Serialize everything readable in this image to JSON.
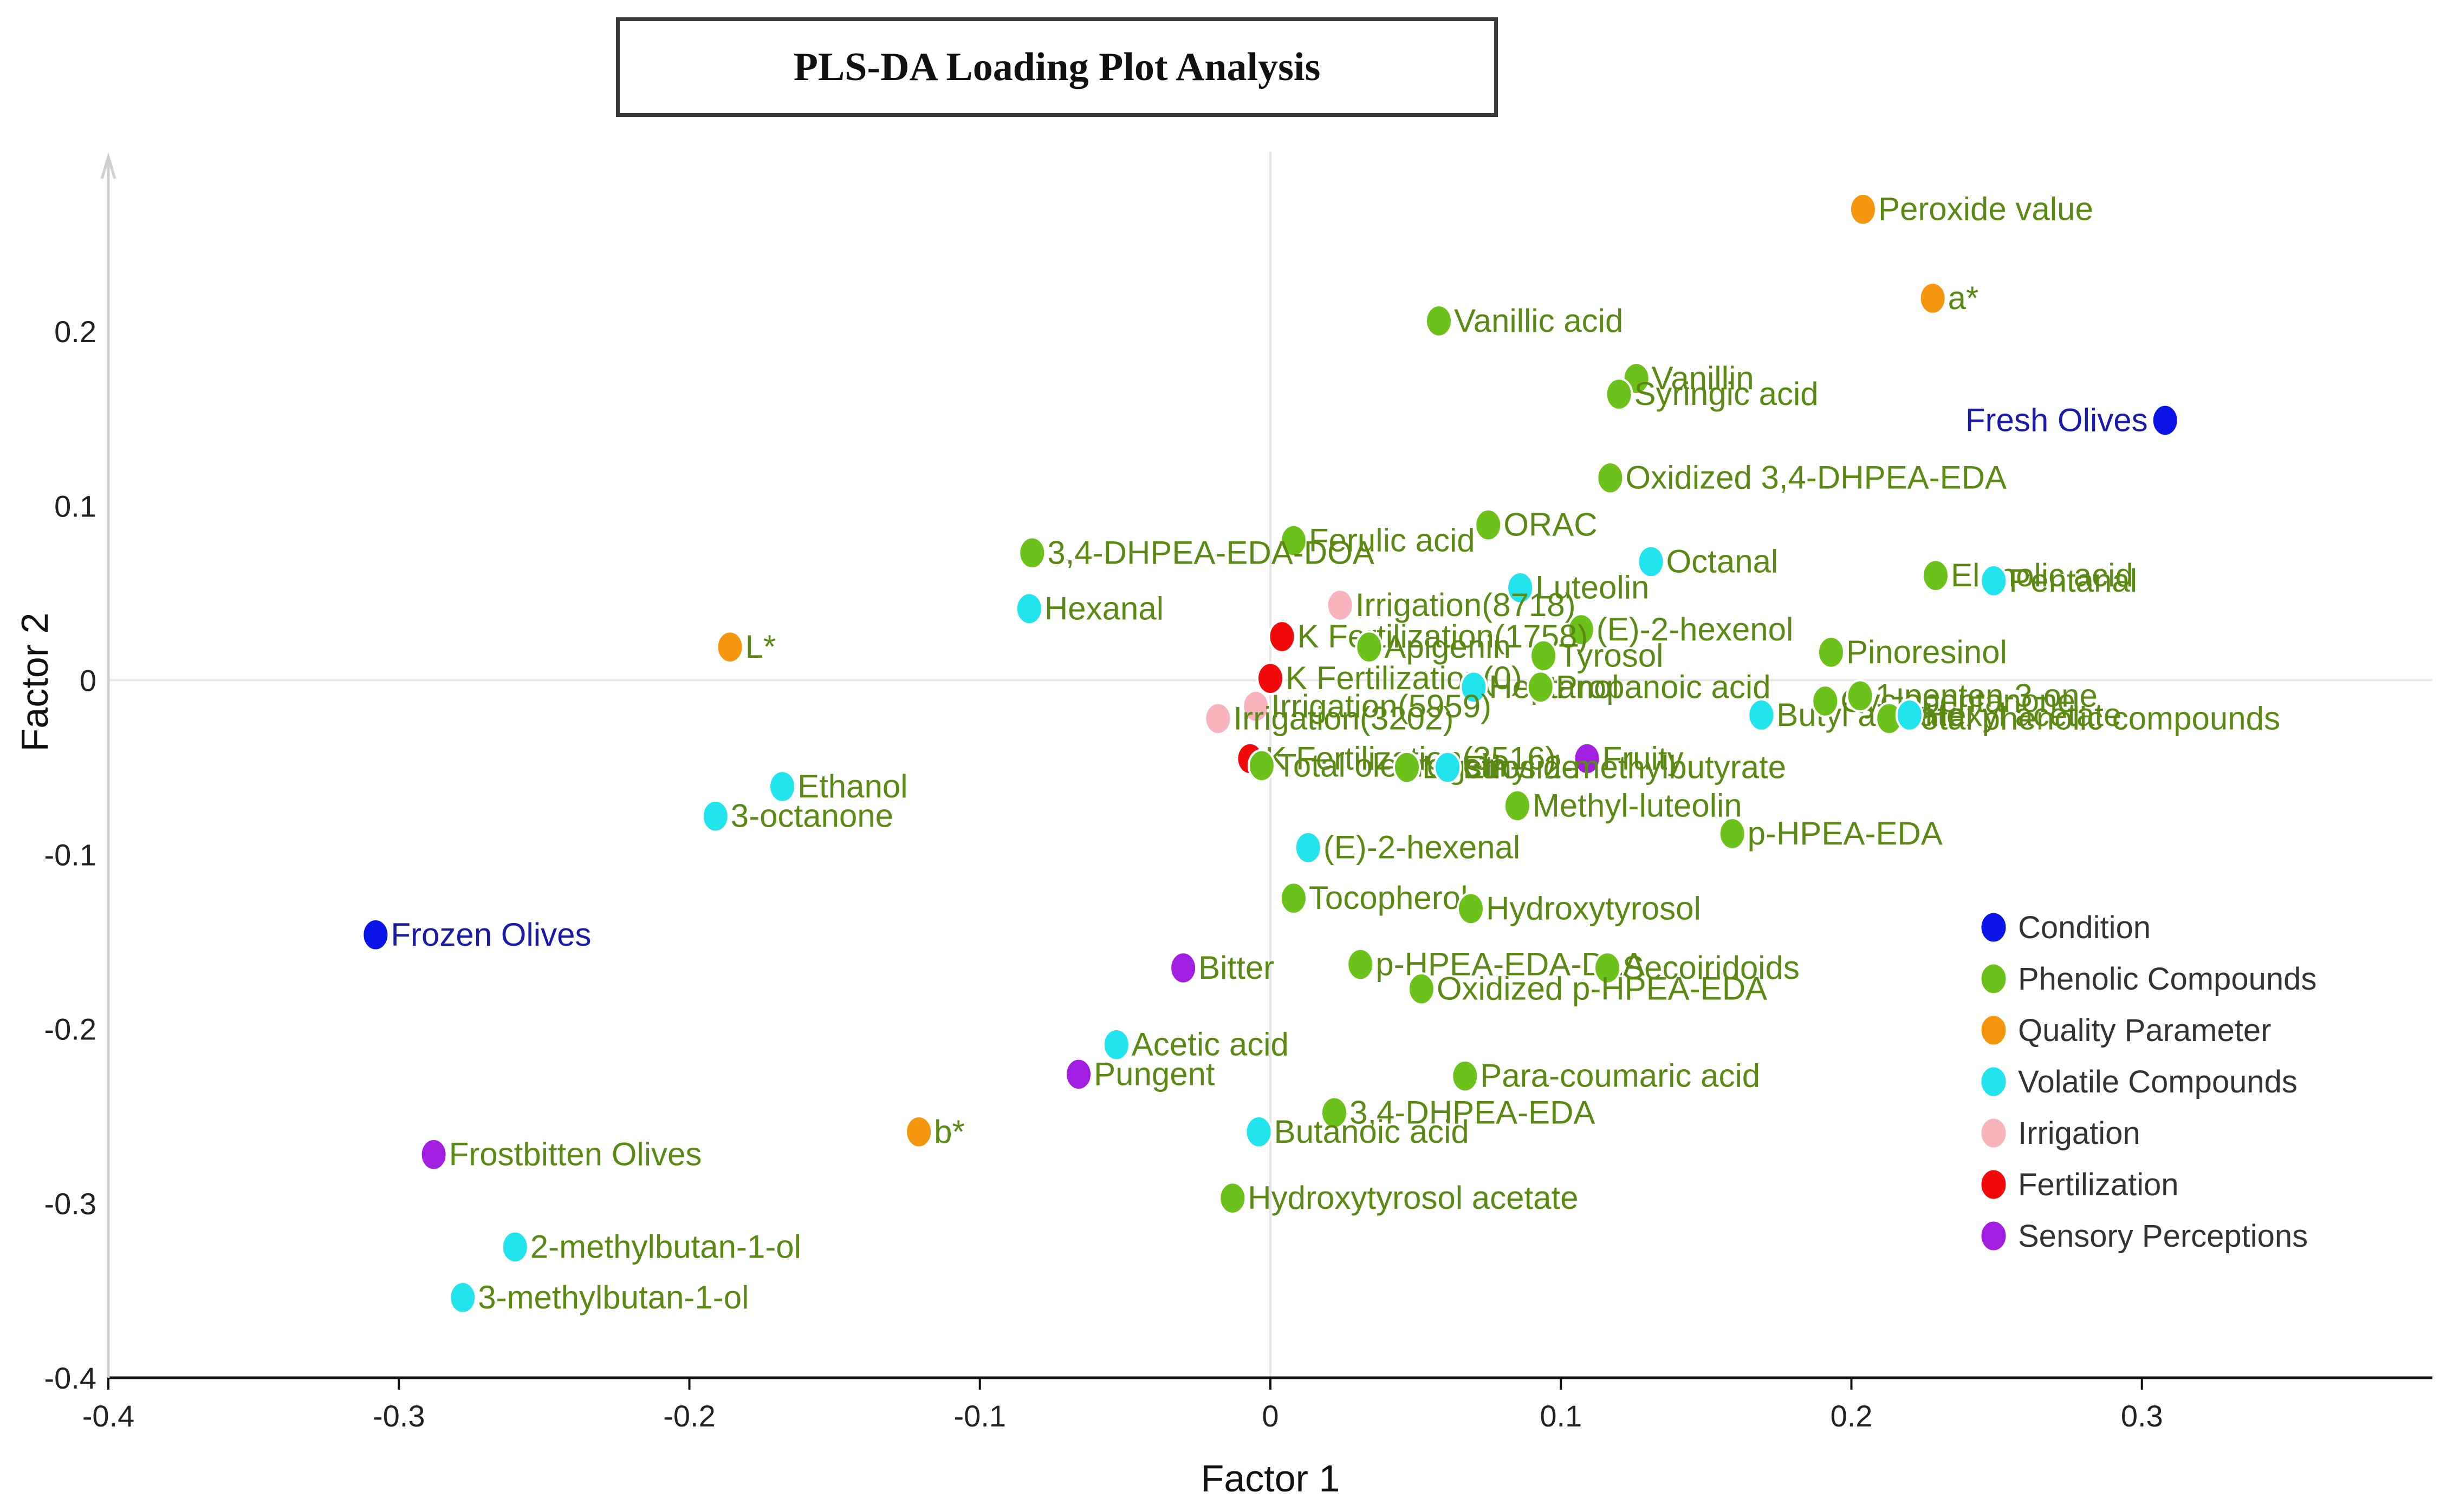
{
  "chart_data": {
    "type": "scatter",
    "title": "PLS-DA Loading Plot Analysis",
    "xlabel": "Factor 1",
    "ylabel": "Factor 2",
    "xlim": [
      -0.4,
      0.4
    ],
    "ylim": [
      -0.4,
      0.3
    ],
    "xticks": [
      -0.4,
      -0.3,
      -0.2,
      -0.1,
      0,
      0.1,
      0.2,
      0.3
    ],
    "xtick_labels": [
      "-0.4",
      "-0.3",
      "-0.2",
      "-0.1",
      "0",
      "0.1",
      "0.2",
      "0.3"
    ],
    "yticks": [
      -0.4,
      -0.3,
      -0.2,
      -0.1,
      0,
      0.1,
      0.2
    ],
    "ytick_labels": [
      "-0.4",
      "-0.3",
      "-0.2",
      "-0.1",
      "0",
      "0.1",
      "0.2"
    ],
    "legend_position": "bottom-right",
    "categories": [
      {
        "name": "Condition",
        "color": "#0a14e6",
        "label_color": "#1a1aa8"
      },
      {
        "name": "Phenolic Compounds",
        "color": "#6cc21a",
        "label_color": "#5a8a14"
      },
      {
        "name": "Quality Parameter",
        "color": "#f5960f",
        "label_color": "#5a8a14"
      },
      {
        "name": "Volatile Compounds",
        "color": "#22e4ec",
        "label_color": "#5a8a14"
      },
      {
        "name": "Irrigation",
        "color": "#f8b4bc",
        "label_color": "#5a8a14"
      },
      {
        "name": "Fertilization",
        "color": "#f00a0a",
        "label_color": "#5a8a14"
      },
      {
        "name": "Sensory Perceptions",
        "color": "#a21ee0",
        "label_color": "#5a8a14"
      }
    ],
    "points": [
      {
        "label": "Fresh Olives",
        "category": "Condition",
        "x": 0.308,
        "y": 0.149,
        "label_side": "left"
      },
      {
        "label": "Frozen Olives",
        "category": "Condition",
        "x": -0.308,
        "y": -0.146,
        "label_side": "right"
      },
      {
        "label": "Frostbitten Olives",
        "category": "Sensory Perceptions",
        "x": -0.288,
        "y": -0.272,
        "label_side": "right"
      },
      {
        "label": "Peroxide value",
        "category": "Quality Parameter",
        "x": 0.204,
        "y": 0.27,
        "label_side": "right"
      },
      {
        "label": "a*",
        "category": "Quality Parameter",
        "x": 0.228,
        "y": 0.219,
        "label_side": "right"
      },
      {
        "label": "L*",
        "category": "Quality Parameter",
        "x": -0.186,
        "y": 0.019,
        "label_side": "right"
      },
      {
        "label": "b*",
        "category": "Quality Parameter",
        "x": -0.121,
        "y": -0.259,
        "label_side": "right"
      },
      {
        "label": "Vanillic acid",
        "category": "Phenolic Compounds",
        "x": 0.058,
        "y": 0.206,
        "label_side": "right"
      },
      {
        "label": "Vanillin",
        "category": "Phenolic Compounds",
        "x": 0.126,
        "y": 0.173,
        "label_side": "right"
      },
      {
        "label": "Syringic acid",
        "category": "Phenolic Compounds",
        "x": 0.12,
        "y": 0.164,
        "label_side": "right"
      },
      {
        "label": "Oxidized 3,4-DHPEA-EDA",
        "category": "Phenolic Compounds",
        "x": 0.117,
        "y": 0.116,
        "label_side": "right"
      },
      {
        "label": "ORAC",
        "category": "Phenolic Compounds",
        "x": 0.075,
        "y": 0.089,
        "label_side": "right"
      },
      {
        "label": "Ferulic acid",
        "category": "Phenolic Compounds",
        "x": 0.008,
        "y": 0.08,
        "label_side": "right"
      },
      {
        "label": "3,4-DHPEA-EDA-DOA",
        "category": "Phenolic Compounds",
        "x": -0.082,
        "y": 0.073,
        "label_side": "right"
      },
      {
        "label": "Octanal",
        "category": "Volatile Compounds",
        "x": 0.131,
        "y": 0.068,
        "label_side": "right"
      },
      {
        "label": "Luteolin",
        "category": "Volatile Compounds",
        "x": 0.086,
        "y": 0.053,
        "label_side": "right"
      },
      {
        "label": "Hexanal",
        "category": "Volatile Compounds",
        "x": -0.083,
        "y": 0.041,
        "label_side": "right"
      },
      {
        "label": "Irrigation(8718)",
        "category": "Irrigation",
        "x": 0.024,
        "y": 0.043,
        "label_side": "right"
      },
      {
        "label": "Elenolic acid",
        "category": "Phenolic Compounds",
        "x": 0.229,
        "y": 0.06,
        "label_side": "right"
      },
      {
        "label": "Pentanal",
        "category": "Volatile Compounds",
        "x": 0.249,
        "y": 0.057,
        "label_side": "right"
      },
      {
        "label": "(E)-2-hexenol",
        "category": "Phenolic Compounds",
        "x": 0.107,
        "y": 0.029,
        "label_side": "right"
      },
      {
        "label": "Pinoresinol",
        "category": "Phenolic Compounds",
        "x": 0.193,
        "y": 0.016,
        "label_side": "right"
      },
      {
        "label": "K Fertilization(1758)",
        "category": "Fertilization",
        "x": 0.004,
        "y": 0.025,
        "label_side": "right"
      },
      {
        "label": "Apigenin",
        "category": "Phenolic Compounds",
        "x": 0.034,
        "y": 0.019,
        "label_side": "right"
      },
      {
        "label": "Tyrosol",
        "category": "Phenolic Compounds",
        "x": 0.094,
        "y": 0.014,
        "label_side": "right"
      },
      {
        "label": "K Fertilization(0)",
        "category": "Fertilization",
        "x": 0,
        "y": 0.001,
        "label_side": "right"
      },
      {
        "label": "Heptanol",
        "category": "Volatile Compounds",
        "x": 0.07,
        "y": -0.004,
        "label_side": "right"
      },
      {
        "label": "Propanoic acid",
        "category": "Phenolic Compounds",
        "x": 0.093,
        "y": -0.004,
        "label_side": "right"
      },
      {
        "label": "Irrigation(5959)",
        "category": "Irrigation",
        "x": -0.005,
        "y": -0.015,
        "label_side": "right"
      },
      {
        "label": "Irrigation(3202)",
        "category": "Irrigation",
        "x": -0.018,
        "y": -0.022,
        "label_side": "right"
      },
      {
        "label": "Butyl acetate",
        "category": "Volatile Compounds",
        "x": 0.169,
        "y": -0.02,
        "label_side": "right"
      },
      {
        "label": "Cyclopentanone",
        "category": "Phenolic Compounds",
        "x": 0.191,
        "y": -0.012,
        "label_side": "right"
      },
      {
        "label": "1-penten-3-one",
        "category": "Phenolic Compounds",
        "x": 0.203,
        "y": -0.009,
        "label_side": "right"
      },
      {
        "label": "Total phenolic compounds",
        "category": "Phenolic Compounds",
        "x": 0.213,
        "y": -0.022,
        "label_side": "right"
      },
      {
        "label": "Hexyl acetate",
        "category": "Volatile Compounds",
        "x": 0.22,
        "y": -0.02,
        "label_side": "right"
      },
      {
        "label": "K Fertilization(3516)",
        "category": "Fertilization",
        "x": -0.007,
        "y": -0.045,
        "label_side": "right"
      },
      {
        "label": "Total oleuropein",
        "category": "Phenolic Compounds",
        "x": -0.003,
        "y": -0.049,
        "label_side": "right"
      },
      {
        "label": "Fruity",
        "category": "Sensory Perceptions",
        "x": 0.109,
        "y": -0.045,
        "label_side": "right"
      },
      {
        "label": "Ligstroside",
        "category": "Phenolic Compounds",
        "x": 0.047,
        "y": -0.05,
        "label_side": "right"
      },
      {
        "label": "Ethyl 2-methylbutyrate",
        "category": "Volatile Compounds",
        "x": 0.061,
        "y": -0.05,
        "label_side": "right"
      },
      {
        "label": "Methyl-luteolin",
        "category": "Phenolic Compounds",
        "x": 0.085,
        "y": -0.072,
        "label_side": "right"
      },
      {
        "label": "p-HPEA-EDA",
        "category": "Phenolic Compounds",
        "x": 0.159,
        "y": -0.088,
        "label_side": "right"
      },
      {
        "label": "Ethanol",
        "category": "Volatile Compounds",
        "x": -0.168,
        "y": -0.061,
        "label_side": "right"
      },
      {
        "label": "3-octanone",
        "category": "Volatile Compounds",
        "x": -0.191,
        "y": -0.078,
        "label_side": "right"
      },
      {
        "label": "(E)-2-hexenal",
        "category": "Volatile Compounds",
        "x": 0.013,
        "y": -0.096,
        "label_side": "right"
      },
      {
        "label": "Tocopherol",
        "category": "Phenolic Compounds",
        "x": 0.008,
        "y": -0.125,
        "label_side": "right"
      },
      {
        "label": "Hydroxytyrosol",
        "category": "Phenolic Compounds",
        "x": 0.069,
        "y": -0.131,
        "label_side": "right"
      },
      {
        "label": "Bitter",
        "category": "Sensory Perceptions",
        "x": -0.03,
        "y": -0.165,
        "label_side": "right"
      },
      {
        "label": "p-HPEA-EDA-DLA",
        "category": "Phenolic Compounds",
        "x": 0.031,
        "y": -0.163,
        "label_side": "right"
      },
      {
        "label": "Secoiridoids",
        "category": "Phenolic Compounds",
        "x": 0.116,
        "y": -0.165,
        "label_side": "right"
      },
      {
        "label": "Oxidized p-HPEA-EDA",
        "category": "Phenolic Compounds",
        "x": 0.052,
        "y": -0.177,
        "label_side": "right"
      },
      {
        "label": "Acetic acid",
        "category": "Volatile Compounds",
        "x": -0.053,
        "y": -0.209,
        "label_side": "right"
      },
      {
        "label": "Pungent",
        "category": "Sensory Perceptions",
        "x": -0.066,
        "y": -0.226,
        "label_side": "right"
      },
      {
        "label": "Para-coumaric acid",
        "category": "Phenolic Compounds",
        "x": 0.067,
        "y": -0.227,
        "label_side": "right"
      },
      {
        "label": "3,4-DHPEA-EDA",
        "category": "Phenolic Compounds",
        "x": 0.022,
        "y": -0.248,
        "label_side": "right"
      },
      {
        "label": "Butanoic acid",
        "category": "Volatile Compounds",
        "x": -0.004,
        "y": -0.259,
        "label_side": "right"
      },
      {
        "label": "Hydroxytyrosol acetate",
        "category": "Phenolic Compounds",
        "x": -0.013,
        "y": -0.297,
        "label_side": "right"
      },
      {
        "label": "2-methylbutan-1-ol",
        "category": "Volatile Compounds",
        "x": -0.26,
        "y": -0.325,
        "label_side": "right"
      },
      {
        "label": "3-methylbutan-1-ol",
        "category": "Volatile Compounds",
        "x": -0.278,
        "y": -0.354,
        "label_side": "right"
      }
    ]
  }
}
